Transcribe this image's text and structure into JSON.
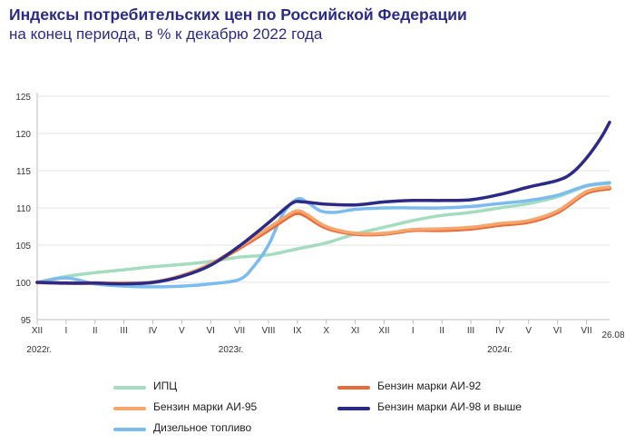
{
  "title": "Индексы потребительских цен по Российской Федерации",
  "subtitle": "на конец периода, в % к декабрю 2022 года",
  "chart_data": {
    "type": "line",
    "y_ticks": [
      95,
      100,
      105,
      110,
      115,
      120,
      125
    ],
    "ylim": [
      95,
      125
    ],
    "x_ticks": [
      "XII",
      "I",
      "II",
      "III",
      "IV",
      "V",
      "VI",
      "VII",
      "VIII",
      "IX",
      "X",
      "XI",
      "XII",
      "I",
      "II",
      "III",
      "IV",
      "V",
      "VI",
      "VII"
    ],
    "x_end_label": "26.08",
    "year_labels": [
      "2022г.",
      "2023г.",
      "2024г."
    ],
    "grid": "horizontal",
    "legend": "bottom",
    "series": [
      {
        "name": "ИПЦ",
        "color": "#a3dcbf",
        "x": [
          0,
          1,
          2,
          3,
          4,
          5,
          6,
          7,
          8,
          9,
          10,
          11,
          12,
          13,
          14,
          15,
          16,
          17,
          18,
          19,
          19.8
        ],
        "values": [
          100.0,
          100.8,
          101.3,
          101.7,
          102.1,
          102.4,
          102.8,
          103.4,
          103.7,
          104.5,
          105.3,
          106.5,
          107.4,
          108.3,
          109.0,
          109.4,
          110.0,
          110.6,
          111.5,
          112.9,
          113.3
        ]
      },
      {
        "name": "Бензин марки АИ-92",
        "color": "#e86c3a",
        "x": [
          0,
          1,
          2,
          3,
          4,
          5,
          6,
          7,
          8,
          8.7,
          9,
          9.3,
          10,
          11,
          12,
          13,
          14,
          15,
          16,
          17,
          18,
          19,
          19.8
        ],
        "values": [
          100.0,
          99.9,
          99.9,
          99.9,
          100.0,
          100.9,
          102.4,
          104.6,
          107.0,
          108.8,
          109.3,
          108.9,
          107.3,
          106.5,
          106.5,
          107.0,
          107.0,
          107.2,
          107.7,
          108.1,
          109.4,
          112.0,
          112.6
        ]
      },
      {
        "name": "Бензин марки АИ-95",
        "color": "#f6a56d",
        "x": [
          0,
          1,
          2,
          3,
          4,
          5,
          6,
          7,
          8,
          8.7,
          9,
          9.3,
          10,
          11,
          12,
          13,
          14,
          15,
          16,
          17,
          18,
          19,
          19.8
        ],
        "values": [
          100.0,
          99.9,
          99.9,
          99.9,
          100.0,
          100.9,
          102.5,
          104.8,
          107.3,
          109.1,
          109.6,
          109.2,
          107.5,
          106.6,
          106.6,
          107.1,
          107.2,
          107.4,
          107.9,
          108.3,
          109.6,
          112.2,
          112.8
        ]
      },
      {
        "name": "Бензин марки АИ-98 и выше",
        "color": "#2b2a86",
        "x": [
          0,
          1,
          2,
          3,
          4,
          5,
          6,
          7,
          8,
          8.8,
          9.2,
          10,
          11,
          12,
          13,
          14,
          15,
          16,
          17,
          18,
          18.5,
          19,
          19.5,
          19.8
        ],
        "values": [
          100.0,
          99.9,
          99.9,
          99.8,
          100.0,
          100.8,
          102.3,
          104.9,
          108.0,
          110.6,
          110.8,
          110.5,
          110.4,
          110.8,
          111.0,
          111.0,
          111.1,
          111.8,
          112.8,
          113.7,
          114.7,
          116.7,
          119.4,
          121.5
        ]
      },
      {
        "name": "Дизельное топливо",
        "color": "#7bbcf0",
        "x": [
          0,
          1,
          2,
          3,
          4,
          5,
          6,
          7,
          7.5,
          8,
          8.5,
          9,
          9.4,
          9.8,
          10.3,
          11,
          12,
          13,
          14,
          15,
          16,
          17,
          18,
          19,
          19.8
        ],
        "values": [
          100.0,
          100.6,
          99.8,
          99.5,
          99.4,
          99.5,
          99.8,
          100.4,
          102.2,
          105.0,
          109.2,
          111.2,
          110.6,
          109.6,
          109.4,
          109.8,
          110.0,
          110.0,
          110.0,
          110.2,
          110.6,
          111.0,
          111.7,
          113.0,
          113.4
        ]
      }
    ]
  },
  "legend_items": [
    {
      "name": "ИПЦ",
      "color": "#a3dcbf"
    },
    {
      "name": "Бензин марки АИ-92",
      "color": "#e86c3a"
    },
    {
      "name": "Бензин марки АИ-95",
      "color": "#f6a56d"
    },
    {
      "name": "Бензин марки АИ-98 и выше",
      "color": "#2b2a86"
    },
    {
      "name": "Дизельное топливо",
      "color": "#7bbcf0"
    }
  ]
}
